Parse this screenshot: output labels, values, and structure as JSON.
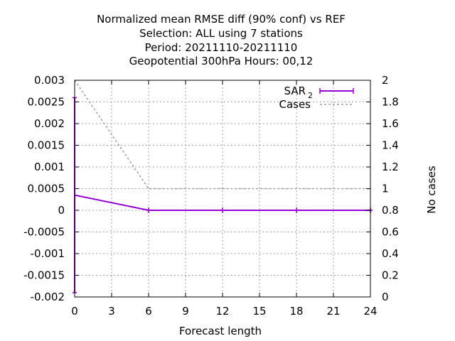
{
  "chart_data": {
    "type": "line",
    "title_lines": [
      "Normalized mean RMSE diff (90% conf) vs REF",
      "Selection: ALL using     7 stations",
      "Period: 20211110-20211110",
      "Geopotential 300hPa   Hours:  00,12"
    ],
    "xlabel": "Forecast length",
    "ylabel": "",
    "y2label": "No cases",
    "xlim": [
      0,
      24
    ],
    "ylim": [
      -0.002,
      0.003
    ],
    "y2lim": [
      0,
      2
    ],
    "xticks": [
      "0",
      "3",
      "6",
      "9",
      "12",
      "15",
      "18",
      "21",
      "24"
    ],
    "yticks": [
      "0.003",
      "0.0025",
      "0.002",
      "0.0015",
      "0.001",
      "0.0005",
      "0",
      "-0.0005",
      "-0.001",
      "-0.0015",
      "-0.002"
    ],
    "y2ticks": [
      "2",
      "1.8",
      "1.6",
      "1.4",
      "1.2",
      "1",
      "0.8",
      "0.6",
      "0.4",
      "0.2",
      "0"
    ],
    "grid": true,
    "legend_position": "top-right",
    "series": [
      {
        "name": "SAR",
        "name_subscript": "2",
        "axis": "y",
        "color": "#9400d3",
        "x": [
          0,
          6,
          12,
          18,
          24
        ],
        "values": [
          0.00035,
          0.0,
          0.0,
          0.0,
          0.0
        ],
        "error_low": [
          -0.0019,
          0.0,
          0.0,
          0.0,
          0.0
        ],
        "error_high": [
          0.0026,
          0.0,
          0.0,
          0.0,
          0.0
        ]
      },
      {
        "name": "Cases",
        "axis": "y2",
        "color": "#a0a0a0",
        "dashed": true,
        "x": [
          0,
          6,
          12,
          18,
          24
        ],
        "values": [
          2,
          1,
          1,
          1,
          1
        ]
      }
    ]
  }
}
